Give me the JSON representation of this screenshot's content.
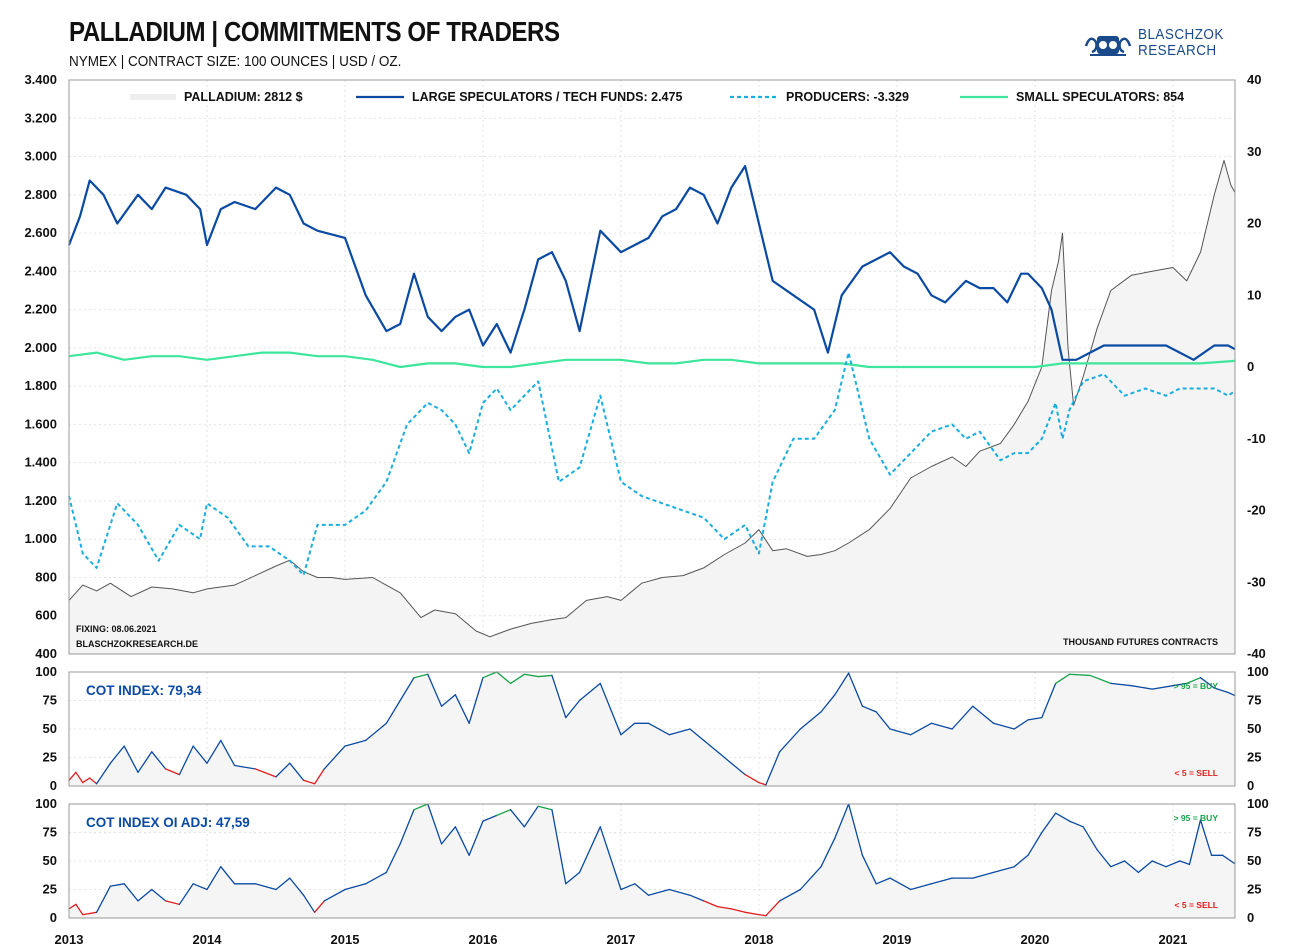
{
  "title": "PALLADIUM | COMMITMENTS OF TRADERS",
  "subtitle": "NYMEX | CONTRACT SIZE: 100 OUNCES | USD / OZ.",
  "logo": {
    "line1": "BLASCHZOK",
    "line2": "RESEARCH"
  },
  "colors": {
    "price": "#555555",
    "price_fill": "#f4f4f4",
    "large": "#0b4aa2",
    "producers": "#1aaee0",
    "small": "#3de69a",
    "index_line": "#0b4aa2",
    "buy": "#16a34a",
    "sell": "#e11d1d"
  },
  "chart_data": [
    {
      "type": "line",
      "panel": "main",
      "x_ticks": [
        "2013",
        "2014",
        "2015",
        "2016",
        "2017",
        "2018",
        "2019",
        "2020",
        "2021"
      ],
      "x_range": [
        2013.0,
        2021.45
      ],
      "y_left": {
        "ticks": [
          "400",
          "600",
          "800",
          "1.000",
          "1.200",
          "1.400",
          "1.600",
          "1.800",
          "2.000",
          "2.200",
          "2.400",
          "2.600",
          "2.800",
          "3.000",
          "3.200",
          "3.400"
        ],
        "ylim": [
          400,
          3400
        ]
      },
      "y_right": {
        "ticks": [
          "-40",
          "-30",
          "-20",
          "-10",
          "0",
          "10",
          "20",
          "30",
          "40"
        ],
        "ylim": [
          -40,
          40
        ]
      },
      "legend": {
        "price": "PALLADIUM: 2812 $",
        "large": "LARGE SPECULATORS / TECH FUNDS: 2.475",
        "producers": "PRODUCERS: -3.329",
        "small": "SMALL SPECULATORS: 854"
      },
      "notes": {
        "fixing": "FIXING: 08.06.2021",
        "site": "BLASCHZOKRESEARCH.DE",
        "units": "THOUSAND FUTURES CONTRACTS"
      },
      "series": [
        {
          "key": "price",
          "axis": "left",
          "x": [
            2013.0,
            2013.1,
            2013.2,
            2013.3,
            2013.45,
            2013.6,
            2013.75,
            2013.9,
            2014.0,
            2014.2,
            2014.35,
            2014.5,
            2014.6,
            2014.7,
            2014.8,
            2014.9,
            2015.0,
            2015.2,
            2015.4,
            2015.55,
            2015.65,
            2015.8,
            2015.95,
            2016.05,
            2016.2,
            2016.35,
            2016.5,
            2016.6,
            2016.75,
            2016.9,
            2017.0,
            2017.15,
            2017.3,
            2017.45,
            2017.6,
            2017.75,
            2017.9,
            2018.0,
            2018.1,
            2018.2,
            2018.35,
            2018.45,
            2018.55,
            2018.65,
            2018.8,
            2018.95,
            2019.1,
            2019.25,
            2019.4,
            2019.5,
            2019.6,
            2019.75,
            2019.85,
            2019.95,
            2020.05,
            2020.12,
            2020.17,
            2020.2,
            2020.24,
            2020.28,
            2020.35,
            2020.45,
            2020.55,
            2020.7,
            2020.85,
            2021.0,
            2021.1,
            2021.2,
            2021.3,
            2021.37,
            2021.42,
            2021.45
          ],
          "y": [
            680,
            760,
            730,
            770,
            700,
            750,
            740,
            720,
            740,
            760,
            810,
            860,
            890,
            830,
            800,
            800,
            790,
            800,
            720,
            590,
            630,
            610,
            520,
            490,
            530,
            560,
            580,
            590,
            680,
            700,
            680,
            770,
            800,
            810,
            850,
            920,
            980,
            1050,
            940,
            950,
            910,
            920,
            940,
            980,
            1050,
            1160,
            1320,
            1380,
            1430,
            1380,
            1460,
            1500,
            1600,
            1720,
            1900,
            2300,
            2450,
            2600,
            2000,
            1700,
            1850,
            2100,
            2300,
            2380,
            2400,
            2420,
            2350,
            2500,
            2800,
            2980,
            2850,
            2812
          ]
        },
        {
          "key": "large",
          "axis": "right",
          "x": [
            2013.0,
            2013.08,
            2013.15,
            2013.25,
            2013.35,
            2013.5,
            2013.6,
            2013.7,
            2013.85,
            2013.95,
            2014.0,
            2014.1,
            2014.2,
            2014.35,
            2014.5,
            2014.6,
            2014.7,
            2014.8,
            2015.0,
            2015.15,
            2015.3,
            2015.4,
            2015.5,
            2015.6,
            2015.7,
            2015.8,
            2015.9,
            2016.0,
            2016.1,
            2016.2,
            2016.3,
            2016.4,
            2016.5,
            2016.6,
            2016.7,
            2016.85,
            2017.0,
            2017.1,
            2017.2,
            2017.3,
            2017.4,
            2017.5,
            2017.6,
            2017.7,
            2017.8,
            2017.9,
            2018.0,
            2018.1,
            2018.25,
            2018.4,
            2018.5,
            2018.6,
            2018.75,
            2018.85,
            2018.95,
            2019.05,
            2019.15,
            2019.25,
            2019.35,
            2019.5,
            2019.6,
            2019.7,
            2019.8,
            2019.9,
            2019.95,
            2020.05,
            2020.12,
            2020.2,
            2020.3,
            2020.4,
            2020.5,
            2020.65,
            2020.8,
            2020.95,
            2021.05,
            2021.15,
            2021.3,
            2021.4,
            2021.45
          ],
          "y": [
            17,
            21,
            26,
            24,
            20,
            24,
            22,
            25,
            24,
            22,
            17,
            22,
            23,
            22,
            25,
            24,
            20,
            19,
            18,
            10,
            5,
            6,
            13,
            7,
            5,
            7,
            8,
            3,
            6,
            2,
            8,
            15,
            16,
            12,
            5,
            19,
            16,
            17,
            18,
            21,
            22,
            25,
            24,
            20,
            25,
            28,
            20,
            12,
            10,
            8,
            2,
            10,
            14,
            15,
            16,
            14,
            13,
            10,
            9,
            12,
            11,
            11,
            9,
            13,
            13,
            11,
            8,
            1,
            1,
            2,
            3,
            3,
            3,
            3,
            2,
            1,
            3,
            3,
            2.475
          ]
        },
        {
          "key": "producers",
          "axis": "right",
          "x": [
            2013.0,
            2013.1,
            2013.2,
            2013.35,
            2013.5,
            2013.65,
            2013.8,
            2013.95,
            2014.0,
            2014.15,
            2014.3,
            2014.45,
            2014.6,
            2014.7,
            2014.8,
            2015.0,
            2015.15,
            2015.3,
            2015.45,
            2015.6,
            2015.7,
            2015.8,
            2015.9,
            2016.0,
            2016.1,
            2016.2,
            2016.3,
            2016.4,
            2016.55,
            2016.7,
            2016.85,
            2017.0,
            2017.15,
            2017.3,
            2017.45,
            2017.6,
            2017.75,
            2017.9,
            2018.0,
            2018.1,
            2018.25,
            2018.4,
            2018.55,
            2018.65,
            2018.8,
            2018.95,
            2019.1,
            2019.25,
            2019.4,
            2019.5,
            2019.6,
            2019.75,
            2019.85,
            2019.95,
            2020.05,
            2020.15,
            2020.2,
            2020.25,
            2020.35,
            2020.5,
            2020.65,
            2020.8,
            2020.95,
            2021.05,
            2021.15,
            2021.3,
            2021.4,
            2021.45
          ],
          "y": [
            -18,
            -26,
            -28,
            -19,
            -22,
            -27,
            -22,
            -24,
            -19,
            -21,
            -25,
            -25,
            -27,
            -29,
            -22,
            -22,
            -20,
            -16,
            -8,
            -5,
            -6,
            -8,
            -12,
            -5,
            -3,
            -6,
            -4,
            -2,
            -16,
            -14,
            -4,
            -16,
            -18,
            -19,
            -20,
            -21,
            -24,
            -22,
            -26,
            -16,
            -10,
            -10,
            -6,
            2,
            -10,
            -15,
            -12,
            -9,
            -8,
            -10,
            -9,
            -13,
            -12,
            -12,
            -10,
            -5,
            -10,
            -6,
            -2,
            -1,
            -4,
            -3,
            -4,
            -3,
            -3,
            -3,
            -4,
            -3.329
          ]
        },
        {
          "key": "small",
          "axis": "right",
          "x": [
            2013.0,
            2013.2,
            2013.4,
            2013.6,
            2013.8,
            2014.0,
            2014.2,
            2014.4,
            2014.6,
            2014.8,
            2015.0,
            2015.2,
            2015.4,
            2015.6,
            2015.8,
            2016.0,
            2016.2,
            2016.4,
            2016.6,
            2016.8,
            2017.0,
            2017.2,
            2017.4,
            2017.6,
            2017.8,
            2018.0,
            2018.2,
            2018.4,
            2018.6,
            2018.8,
            2019.0,
            2019.2,
            2019.4,
            2019.6,
            2019.8,
            2020.0,
            2020.2,
            2020.4,
            2020.6,
            2020.8,
            2021.0,
            2021.2,
            2021.45
          ],
          "y": [
            1.5,
            2,
            1,
            1.5,
            1.5,
            1,
            1.5,
            2,
            2,
            1.5,
            1.5,
            1,
            0,
            0.5,
            0.5,
            0,
            0,
            0.5,
            1,
            1,
            1,
            0.5,
            0.5,
            1,
            1,
            0.5,
            0.5,
            0.5,
            0.5,
            0,
            0,
            0,
            0,
            0,
            0,
            0,
            0.5,
            0.5,
            0.5,
            0.5,
            0.5,
            0.5,
            0.854
          ]
        }
      ]
    },
    {
      "type": "line",
      "panel": "cot_index",
      "label": "COT INDEX: 79,34",
      "y_ticks": [
        "0",
        "25",
        "50",
        "75",
        "100"
      ],
      "ylim": [
        0,
        100
      ],
      "buy_label": "> 95 = BUY",
      "sell_label": "< 5 = SELL",
      "x": [
        2013.0,
        2013.05,
        2013.1,
        2013.15,
        2013.2,
        2013.3,
        2013.4,
        2013.5,
        2013.6,
        2013.7,
        2013.8,
        2013.9,
        2014.0,
        2014.1,
        2014.2,
        2014.35,
        2014.5,
        2014.6,
        2014.7,
        2014.78,
        2014.85,
        2015.0,
        2015.15,
        2015.3,
        2015.4,
        2015.5,
        2015.6,
        2015.7,
        2015.8,
        2015.9,
        2016.0,
        2016.1,
        2016.2,
        2016.3,
        2016.4,
        2016.5,
        2016.6,
        2016.7,
        2016.85,
        2017.0,
        2017.1,
        2017.2,
        2017.35,
        2017.5,
        2017.6,
        2017.7,
        2017.8,
        2017.9,
        2018.0,
        2018.05,
        2018.15,
        2018.3,
        2018.45,
        2018.55,
        2018.65,
        2018.75,
        2018.85,
        2018.95,
        2019.1,
        2019.25,
        2019.4,
        2019.55,
        2019.7,
        2019.85,
        2019.95,
        2020.05,
        2020.15,
        2020.25,
        2020.4,
        2020.55,
        2020.7,
        2020.85,
        2021.0,
        2021.1,
        2021.2,
        2021.3,
        2021.4,
        2021.45
      ],
      "y": [
        5,
        12,
        3,
        7,
        2,
        20,
        35,
        12,
        30,
        15,
        10,
        35,
        20,
        40,
        18,
        15,
        8,
        20,
        5,
        2,
        15,
        35,
        40,
        55,
        75,
        95,
        98,
        70,
        80,
        55,
        95,
        100,
        90,
        98,
        96,
        97,
        60,
        75,
        90,
        45,
        55,
        55,
        45,
        50,
        40,
        30,
        20,
        10,
        3,
        1,
        30,
        50,
        65,
        80,
        99,
        70,
        65,
        50,
        45,
        55,
        50,
        70,
        55,
        50,
        58,
        60,
        90,
        98,
        97,
        90,
        88,
        85,
        88,
        90,
        95,
        86,
        82,
        79.34
      ]
    },
    {
      "type": "line",
      "panel": "cot_index_oi_adj",
      "label": "COT INDEX OI ADJ: 47,59",
      "y_ticks": [
        "0",
        "25",
        "50",
        "75",
        "100"
      ],
      "ylim": [
        0,
        100
      ],
      "buy_label": "> 95 = BUY",
      "sell_label": "< 5 = SELL",
      "x": [
        2013.0,
        2013.05,
        2013.1,
        2013.2,
        2013.3,
        2013.4,
        2013.5,
        2013.6,
        2013.7,
        2013.8,
        2013.9,
        2014.0,
        2014.1,
        2014.2,
        2014.35,
        2014.5,
        2014.6,
        2014.7,
        2014.78,
        2014.85,
        2015.0,
        2015.15,
        2015.3,
        2015.4,
        2015.5,
        2015.6,
        2015.7,
        2015.8,
        2015.9,
        2016.0,
        2016.1,
        2016.2,
        2016.3,
        2016.4,
        2016.5,
        2016.6,
        2016.7,
        2016.85,
        2017.0,
        2017.1,
        2017.2,
        2017.35,
        2017.5,
        2017.6,
        2017.7,
        2017.8,
        2017.9,
        2018.0,
        2018.05,
        2018.15,
        2018.3,
        2018.45,
        2018.55,
        2018.65,
        2018.75,
        2018.85,
        2018.95,
        2019.1,
        2019.25,
        2019.4,
        2019.55,
        2019.7,
        2019.85,
        2019.95,
        2020.05,
        2020.15,
        2020.25,
        2020.35,
        2020.45,
        2020.55,
        2020.65,
        2020.75,
        2020.85,
        2020.95,
        2021.05,
        2021.12,
        2021.2,
        2021.28,
        2021.36,
        2021.45
      ],
      "y": [
        8,
        12,
        3,
        5,
        28,
        30,
        15,
        25,
        15,
        12,
        30,
        25,
        45,
        30,
        30,
        25,
        35,
        20,
        5,
        15,
        25,
        30,
        40,
        65,
        95,
        100,
        65,
        80,
        55,
        85,
        90,
        95,
        80,
        98,
        95,
        30,
        40,
        80,
        25,
        30,
        20,
        25,
        20,
        15,
        10,
        8,
        5,
        3,
        2,
        15,
        25,
        45,
        70,
        100,
        55,
        30,
        35,
        25,
        30,
        35,
        35,
        40,
        45,
        55,
        75,
        92,
        85,
        80,
        60,
        45,
        50,
        40,
        50,
        45,
        50,
        47,
        86,
        55,
        55,
        47.59
      ]
    }
  ]
}
